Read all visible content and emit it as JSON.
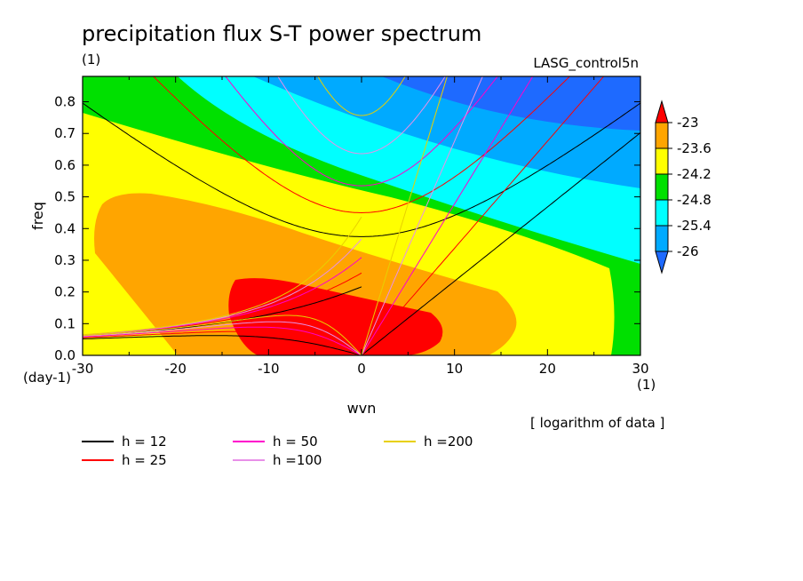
{
  "chart_data": {
    "type": "heatmap",
    "title": "precipitation flux S-T power spectrum",
    "subtitle_left": "(1)",
    "subtitle_right": "LASG_control5n",
    "xlabel": "wvn",
    "ylabel": "freq",
    "x_unit": "(1)",
    "y_unit": "(day-1)",
    "xlim": [
      -30,
      30
    ],
    "ylim": [
      0,
      0.88
    ],
    "x_ticks": [
      -30,
      -20,
      -10,
      0,
      10,
      20,
      30
    ],
    "x_tick_labels": [
      "-30",
      "-20",
      "-10",
      "0",
      "10",
      "20",
      "30"
    ],
    "y_ticks": [
      0.0,
      0.1,
      0.2,
      0.3,
      0.4,
      0.5,
      0.6,
      0.7,
      0.8
    ],
    "y_tick_labels": [
      "0.0",
      "0.1",
      "0.2",
      "0.3",
      "0.4",
      "0.5",
      "0.6",
      "0.7",
      "0.8"
    ],
    "note": "[ logarithm of data ]",
    "colorbar": {
      "labels": [
        "-23",
        "-23.6",
        "-24.2",
        "-24.8",
        "-25.4",
        "-26"
      ],
      "levels": [
        -23,
        -23.6,
        -24.2,
        -24.8,
        -25.4,
        -26
      ],
      "colors": [
        "#ff0000",
        "#ffa500",
        "#ffff00",
        "#00e000",
        "#00ffff",
        "#00aaff",
        "#1e6aff"
      ]
    },
    "filled_levels": [
      {
        "name": "blue",
        "color": "#1e6aff",
        "boundary_hint": "above"
      },
      {
        "name": "light-blue",
        "color": "#00aaff"
      },
      {
        "name": "cyan",
        "color": "#00ffff"
      },
      {
        "name": "green",
        "color": "#00e000"
      },
      {
        "name": "yellow",
        "color": "#ffff00"
      },
      {
        "name": "orange",
        "color": "#ffa500"
      },
      {
        "name": "red",
        "color": "#ff0000"
      }
    ],
    "series": [
      {
        "name": "h = 12",
        "color": "#000000",
        "h": 12
      },
      {
        "name": "h = 25",
        "color": "#ff0000",
        "h": 25
      },
      {
        "name": "h = 50",
        "color": "#ff00cc",
        "h": 50
      },
      {
        "name": "h =100",
        "color": "#e890e8",
        "h": 100
      },
      {
        "name": "h =200",
        "color": "#e8d000",
        "h": 200
      }
    ]
  }
}
